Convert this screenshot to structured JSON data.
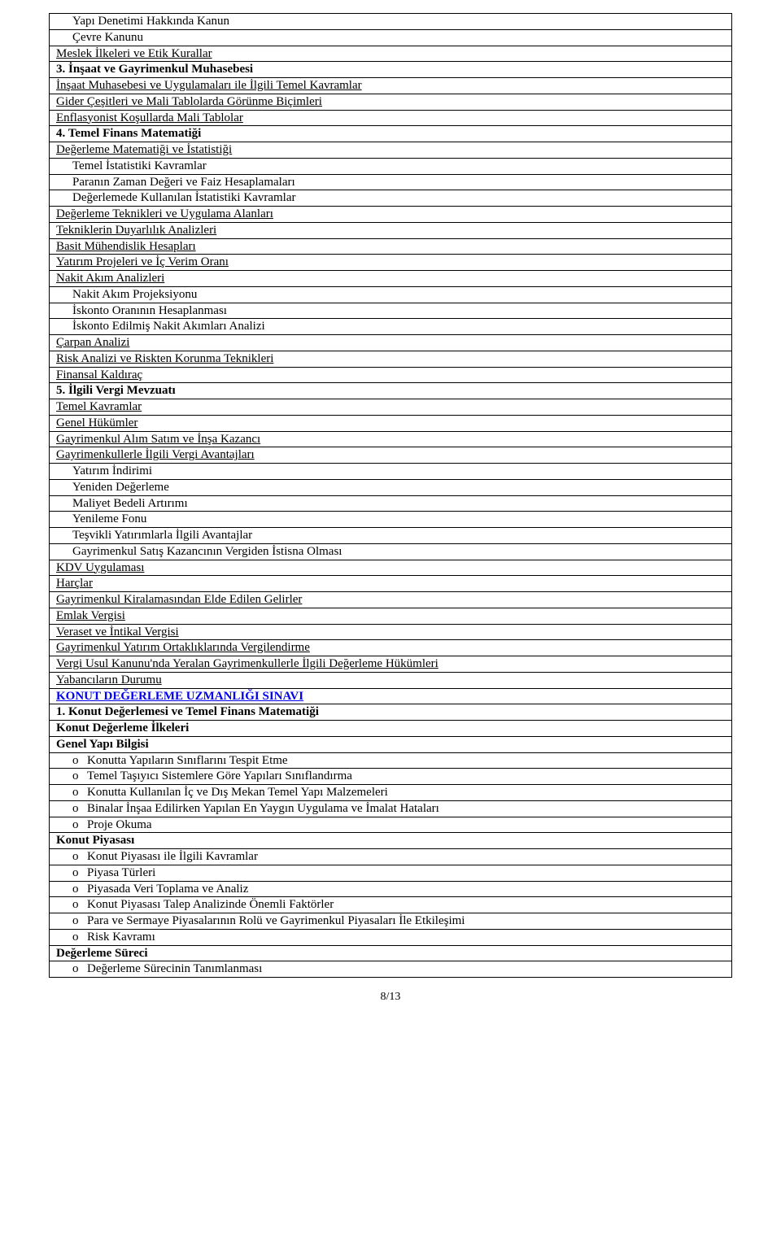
{
  "page_number": "8/13",
  "colors": {
    "text": "#000000",
    "border": "#000000",
    "link": "#0000ee",
    "background": "#ffffff"
  },
  "rows": [
    {
      "text": "Yapı Denetimi Hakkında Kanun",
      "indent": 1
    },
    {
      "text": "Çevre Kanunu",
      "indent": 1
    },
    {
      "text": "Meslek İlkeleri ve Etik Kurallar",
      "indent": 0,
      "underline": true
    },
    {
      "text": "3. İnşaat ve Gayrimenkul Muhasebesi",
      "indent": 0,
      "bold": true
    },
    {
      "text": "İnşaat Muhasebesi ve Uygulamaları ile İlgili Temel Kavramlar",
      "indent": 0,
      "underline": true
    },
    {
      "text": "Gider Çeşitleri ve Mali Tablolarda Görünme Biçimleri",
      "indent": 0,
      "underline": true
    },
    {
      "text": "Enflasyonist Koşullarda Mali Tablolar",
      "indent": 0,
      "underline": true
    },
    {
      "text": "4. Temel Finans Matematiği",
      "indent": 0,
      "bold": true
    },
    {
      "text": "Değerleme Matematiği ve İstatistiği",
      "indent": 0,
      "underline": true
    },
    {
      "text": "Temel İstatistiki Kavramlar",
      "indent": 1
    },
    {
      "text": "Paranın Zaman Değeri ve Faiz Hesaplamaları",
      "indent": 1
    },
    {
      "text": "Değerlemede Kullanılan İstatistiki Kavramlar",
      "indent": 1
    },
    {
      "text": "Değerleme Teknikleri ve Uygulama Alanları",
      "indent": 0,
      "underline": true
    },
    {
      "text": "Tekniklerin Duyarlılık Analizleri",
      "indent": 0,
      "underline": true
    },
    {
      "text": "Basit Mühendislik Hesapları",
      "indent": 0,
      "underline": true
    },
    {
      "text": "Yatırım Projeleri ve İç Verim Oranı",
      "indent": 0,
      "underline": true
    },
    {
      "text": "Nakit Akım Analizleri",
      "indent": 0,
      "underline": true
    },
    {
      "text": "Nakit Akım Projeksiyonu",
      "indent": 1
    },
    {
      "text": "İskonto Oranının Hesaplanması",
      "indent": 1
    },
    {
      "text": "İskonto Edilmiş Nakit Akımları Analizi",
      "indent": 1
    },
    {
      "text": "Çarpan Analizi",
      "indent": 0,
      "underline": true
    },
    {
      "text": "Risk Analizi ve Riskten Korunma Teknikleri",
      "indent": 0,
      "underline": true
    },
    {
      "text": "Finansal Kaldıraç",
      "indent": 0,
      "underline": true
    },
    {
      "text": "5. İlgili Vergi Mevzuatı",
      "indent": 0,
      "bold": true
    },
    {
      "text": "Temel Kavramlar",
      "indent": 0,
      "underline": true
    },
    {
      "text": "Genel Hükümler",
      "indent": 0,
      "underline": true
    },
    {
      "text": "Gayrimenkul Alım Satım ve İnşa Kazancı",
      "indent": 0,
      "underline": true
    },
    {
      "text": "Gayrimenkullerle İlgili Vergi Avantajları",
      "indent": 0,
      "underline": true
    },
    {
      "text": "Yatırım İndirimi",
      "indent": 1
    },
    {
      "text": "Yeniden Değerleme",
      "indent": 1
    },
    {
      "text": "Maliyet Bedeli Artırımı",
      "indent": 1
    },
    {
      "text": "Yenileme Fonu",
      "indent": 1
    },
    {
      "text": "Teşvikli Yatırımlarla İlgili Avantajlar",
      "indent": 1
    },
    {
      "text": "Gayrimenkul Satış Kazancının Vergiden İstisna Olması",
      "indent": 1
    },
    {
      "text": "KDV Uygulaması",
      "indent": 0,
      "underline": true
    },
    {
      "text": "Harçlar",
      "indent": 0,
      "underline": true
    },
    {
      "text": "Gayrimenkul Kiralamasından Elde Edilen Gelirler",
      "indent": 0,
      "underline": true
    },
    {
      "text": "Emlak Vergisi",
      "indent": 0,
      "underline": true
    },
    {
      "text": "Veraset ve İntikal Vergisi",
      "indent": 0,
      "underline": true
    },
    {
      "text": "Gayrimenkul Yatırım Ortaklıklarında Vergilendirme",
      "indent": 0,
      "underline": true
    },
    {
      "text": "Vergi Usul Kanunu'nda Yeralan Gayrimenkullerle İlgili Değerleme Hükümleri",
      "indent": 0,
      "underline": true
    },
    {
      "text": "Yabancıların Durumu",
      "indent": 0,
      "underline": true
    },
    {
      "text": "KONUT DEĞERLEME UZMANLIĞI SINAVI",
      "indent": 0,
      "style": "section-link"
    },
    {
      "text": "1. Konut Değerlemesi ve Temel Finans Matematiği",
      "indent": 0,
      "bold": true
    },
    {
      "text": "Konut Değerleme İlkeleri",
      "indent": 0,
      "bold": true
    },
    {
      "text": "Genel Yapı Bilgisi",
      "indent": 0,
      "bold": true
    },
    {
      "text": "Konutta Yapıların Sınıflarını Tespit Etme",
      "indent": 1,
      "bullet": "o"
    },
    {
      "text": "Temel Taşıyıcı Sistemlere Göre Yapıları Sınıflandırma",
      "indent": 1,
      "bullet": "o"
    },
    {
      "text": "Konutta Kullanılan İç ve Dış Mekan Temel Yapı Malzemeleri",
      "indent": 1,
      "bullet": "o"
    },
    {
      "text": "Binalar İnşaa Edilirken Yapılan En Yaygın Uygulama ve İmalat Hataları",
      "indent": 1,
      "bullet": "o"
    },
    {
      "text": "Proje Okuma",
      "indent": 1,
      "bullet": "o"
    },
    {
      "text": "Konut Piyasası",
      "indent": 0,
      "bold": true
    },
    {
      "text": "Konut Piyasası ile İlgili Kavramlar",
      "indent": 1,
      "bullet": "o"
    },
    {
      "text": "Piyasa Türleri",
      "indent": 1,
      "bullet": "o"
    },
    {
      "text": "Piyasada Veri Toplama ve Analiz",
      "indent": 1,
      "bullet": "o"
    },
    {
      "text": "Konut Piyasası Talep Analizinde Önemli Faktörler",
      "indent": 1,
      "bullet": "o"
    },
    {
      "text": "Para ve Sermaye Piyasalarının Rolü ve Gayrimenkul Piyasaları İle Etkileşimi",
      "indent": 1,
      "bullet": "o"
    },
    {
      "text": "Risk Kavramı",
      "indent": 1,
      "bullet": "o"
    },
    {
      "text": "Değerleme Süreci",
      "indent": 0,
      "bold": true
    },
    {
      "text": "Değerleme Sürecinin Tanımlanması",
      "indent": 1,
      "bullet": "o"
    }
  ]
}
